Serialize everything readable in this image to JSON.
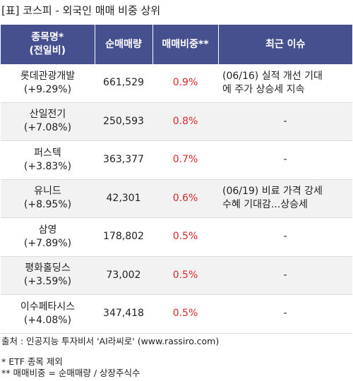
{
  "title": "[표] 코스피 - 외국인 매매 비중 상위",
  "header": {
    "col1_line1": "종목명*",
    "col1_line2": "(전일비)",
    "col2": "순매매량",
    "col3": "매매비중**",
    "col4": "최근 이슈"
  },
  "rows": [
    {
      "name": "롯데관광개발",
      "change": "(+9.29%)",
      "qty": "661,529",
      "ratio": "0.9%",
      "issue": "(06/16) 실적 개선 기대\n에 주가 상승세 지속"
    },
    {
      "name": "산일전기",
      "change": "(+7.08%)",
      "qty": "250,593",
      "ratio": "0.8%",
      "issue": "-"
    },
    {
      "name": "퍼스텍",
      "change": "(+3.83%)",
      "qty": "363,377",
      "ratio": "0.7%",
      "issue": "-"
    },
    {
      "name": "유니드",
      "change": "(+8.95%)",
      "qty": "42,301",
      "ratio": "0.6%",
      "issue": "(06/19) 비료 가격 강세\n 수혜 기대감...상승세"
    },
    {
      "name": "삼영",
      "change": "(+7.89%)",
      "qty": "178,802",
      "ratio": "0.5%",
      "issue": "-"
    },
    {
      "name": "평화홀딩스",
      "change": "(+3.59%)",
      "qty": "73,002",
      "ratio": "0.5%",
      "issue": "-"
    },
    {
      "name": "이수페타시스",
      "change": "(+4.08%)",
      "qty": "347,418",
      "ratio": "0.5%",
      "issue": "-"
    }
  ],
  "footer": {
    "source": "출처 : 인공지능 투자비서 'AI라씨로' (www.rassiro.com)",
    "note1": "* ETF 종목 제외",
    "note2": "** 매매비중 = 순매매량 / 상장주식수"
  },
  "colors": {
    "header_bg": "#46508e",
    "ratio_red": "#e0242a",
    "stripe": "#f2f2f2"
  }
}
